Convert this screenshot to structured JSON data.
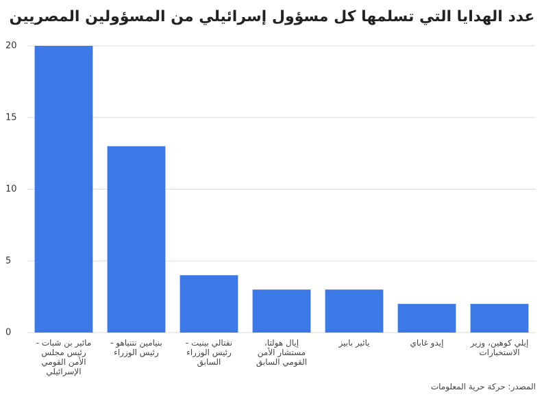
{
  "chart_data": {
    "type": "bar",
    "title": "عدد الهدايا التي تسلمها كل مسؤول إسرائيلي من المسؤولين المصريين",
    "categories": [
      "مائير بن شبات - رئيس مجلس الأمن القومي الإسرائيلي",
      "بنيامين نتنياهو - رئيس الوزراء",
      "نفتالي بينيت - رئيس الوزراء السابق",
      "إيال هولتا، مستشار الأمن القومي السابق",
      "يائير بابيز",
      "إيدو غاباي",
      "إيلي كوهين، وزير الاستخبارات"
    ],
    "values": [
      20,
      13,
      4,
      3,
      3,
      2,
      2
    ],
    "color": "#3d79e6",
    "ylim": [
      0,
      20
    ],
    "yticks": [
      0,
      5,
      10,
      15,
      20
    ],
    "grid": true,
    "source": "المصدر: حركة حرية المعلومات"
  }
}
